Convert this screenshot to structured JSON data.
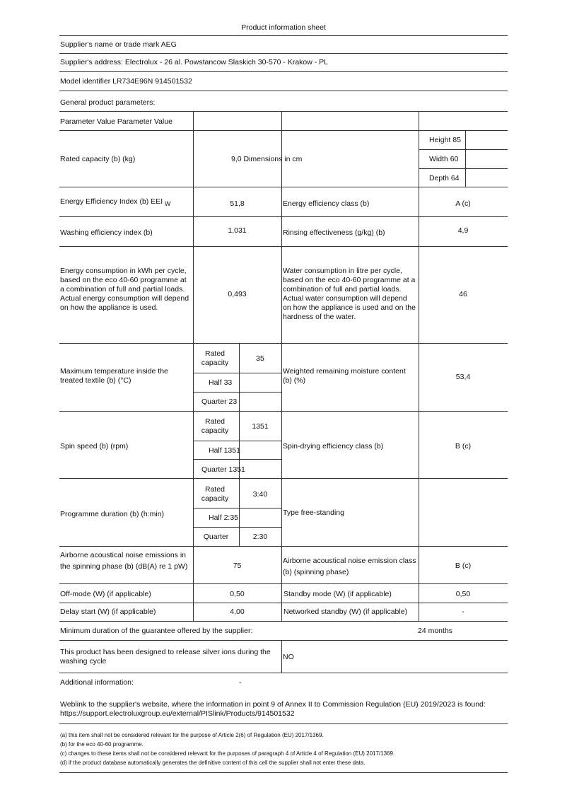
{
  "title": "Product information sheet",
  "supplier_name": "Supplier's name or trade mark AEG",
  "supplier_address": "Supplier's address: Electrolux - 26 al. Powstancow Slaskich 30-570 - Krakow - PL",
  "model_identifier": "Model identifier LR734E96N 914501532",
  "general_params": "General product parameters:",
  "table": {
    "header": "Parameter Value Parameter Value",
    "rated_capacity": {
      "label": "Rated capacity (b) (kg)",
      "value": "9,0 Dimensions in cm",
      "height": "Height 85",
      "width": "Width 60",
      "depth": "Depth 64"
    },
    "eei": {
      "label": "Energy Efficiency Index (b) EEI",
      "sub": "W",
      "value": "51,8",
      "label2": "Energy efficiency class (b)",
      "value2": "A (c)"
    },
    "washing": {
      "label": "Washing efficiency index (b)",
      "value": "1,031",
      "label2": "Rinsing effectiveness (g/kg) (b)",
      "value2": "4,9"
    },
    "energy": {
      "label": "Energy consumption in kWh per cycle, based on the eco 40-60 programme at a combination of full and partial loads. Actual energy consumption will depend on how the appliance is used.",
      "value": "0,493",
      "label2": "Water consumption in litre per cycle, based on the eco 40-60 programme at a combination of full and partial loads. Actual water consumption will depend on how the appliance is used and on the hardness of the water.",
      "value2": "46"
    },
    "temperature": {
      "label": "Maximum temperature inside the treated textile (b) (°C)",
      "rated": "Rated capacity",
      "rated_value": "35",
      "half": "Half 33",
      "quarter": "Quarter 23",
      "label2": "Weighted remaining moisture content (b) (%)",
      "value2": "53,4"
    },
    "spin": {
      "label": "Spin speed (b) (rpm)",
      "rated": "Rated capacity",
      "rated_value": "1351",
      "half": "Half 1351",
      "quarter": "Quarter 1351",
      "label2": "Spin-drying efficiency class (b)",
      "value2": "B (c)"
    },
    "duration": {
      "label": "Programme duration (b) (h:min)",
      "rated": "Rated capacity",
      "rated_value": "3:40",
      "half": "Half 2:35",
      "quarter": "Quarter",
      "quarter_value": "2:30",
      "label2": "Type free-standing"
    },
    "noise": {
      "label": "Airborne acoustical noise emissions in the spinning phase (b) (dB(A) re 1 pW)",
      "value": "75",
      "label2": "Airborne acoustical noise emission class (b) (spinning phase)",
      "value2": "B (c)"
    },
    "offmode": {
      "label": "Off-mode (W) (if applicable)",
      "value": "0,50",
      "label2": "Standby mode (W) (if applicable)",
      "value2": "0,50"
    },
    "delay": {
      "label": "Delay start (W) (if applicable)",
      "value": "4,00",
      "label2": "Networked standby (W) (if applicable)",
      "value2": "-"
    }
  },
  "guarantee": {
    "label": "Minimum duration of the guarantee offered by the supplier:",
    "value": "24 months"
  },
  "silver": {
    "label": "This product has been designed to release silver ions during the washing cycle",
    "value": "NO"
  },
  "additional": {
    "label": "Additional information:",
    "value": "-"
  },
  "weblink": "Weblink to the supplier's website, where the information in point 9 of Annex II to Commission Regulation (EU) 2019/2023 is found: https://support.electroluxgroup.eu/external/PISlink/Products/914501532",
  "footnotes": [
    "(a) this item shall not be considered relevant for the purpose of Article 2(6) of Regulation (EU) 2017/1369.",
    "(b) for the eco 40-60 programme.",
    "(c) changes to these items shall not be considered relevant for the purposes of paragraph 4 of Article 4 of Regulation (EU) 2017/1369.",
    "(d) if the product database automatically generates the definitive content of this cell the supplier shall not enter these data."
  ]
}
